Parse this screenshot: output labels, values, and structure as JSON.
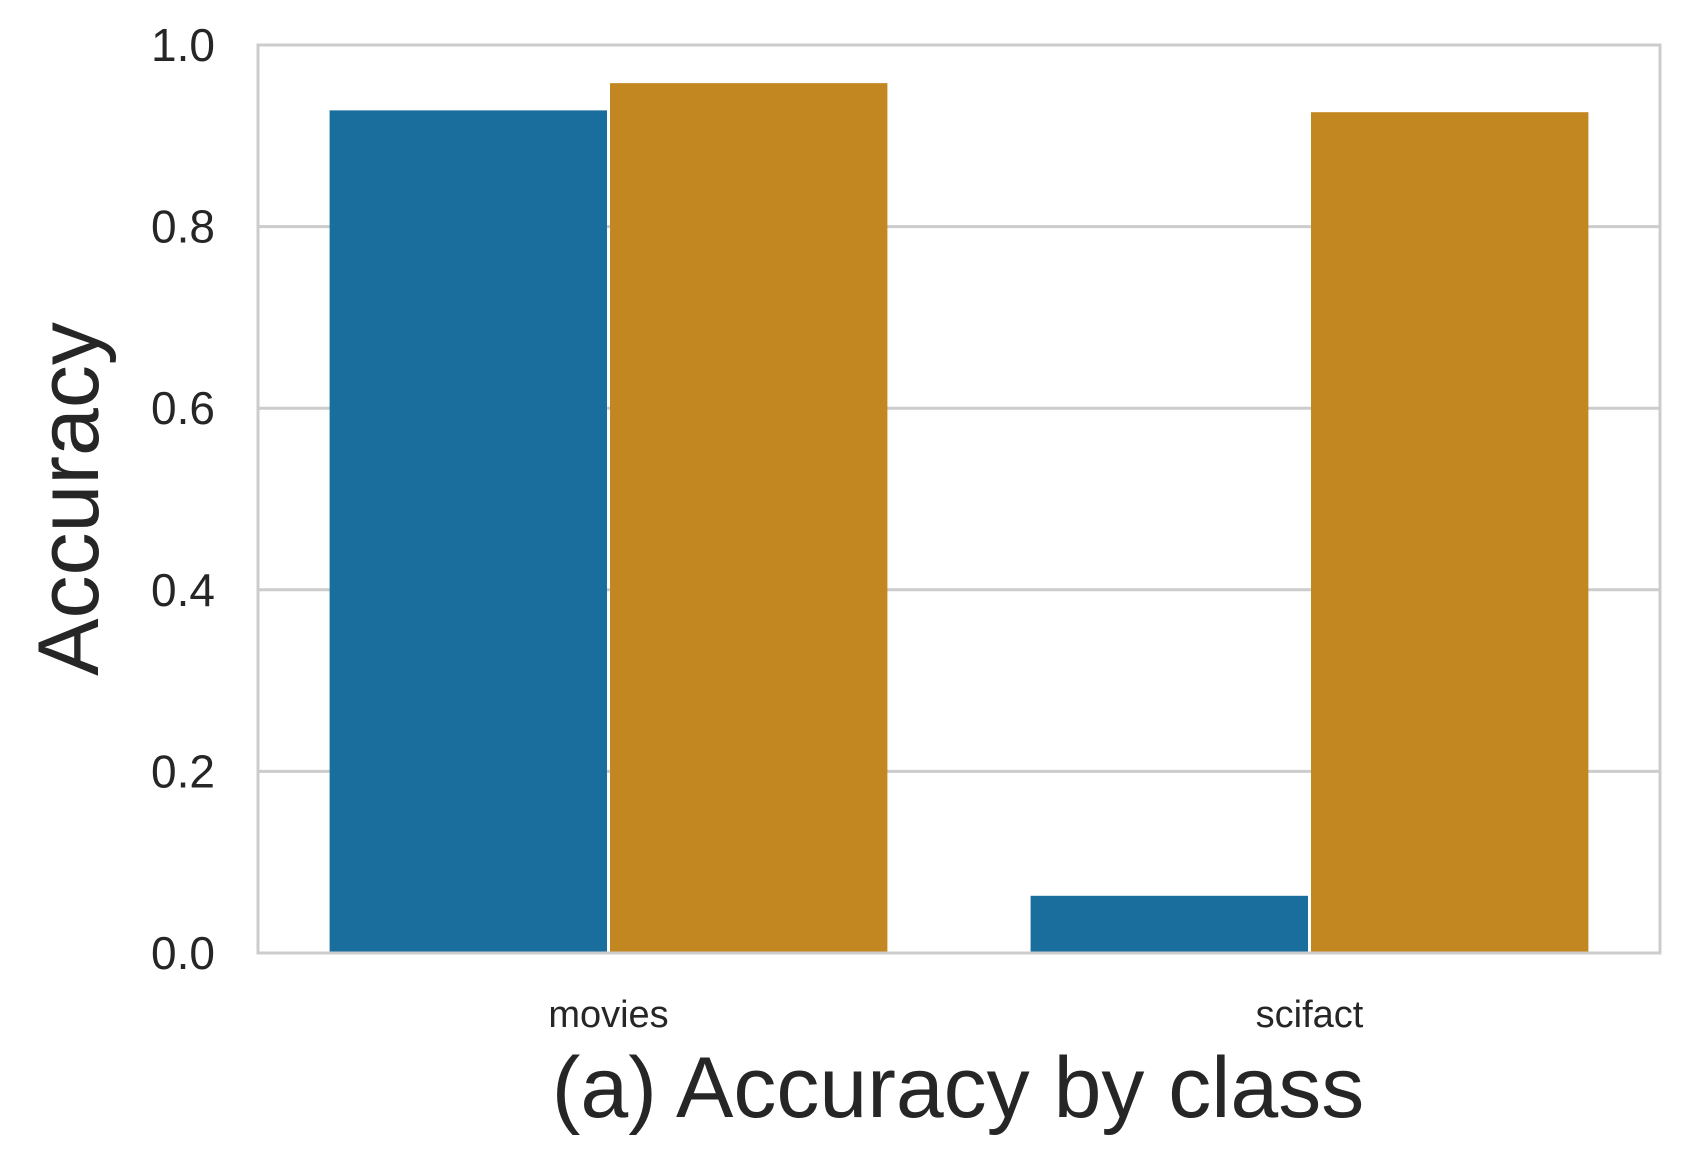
{
  "chart_data": {
    "type": "bar",
    "title": "",
    "xlabel": "(a) Accuracy by class",
    "ylabel": "Accuracy",
    "categories": [
      "movies",
      "scifact"
    ],
    "series": [
      {
        "color": "#1a6e9e",
        "values": [
          0.928,
          0.063
        ]
      },
      {
        "color": "#c28720",
        "values": [
          0.958,
          0.926
        ]
      }
    ],
    "ylim": [
      0,
      1.0
    ],
    "yticks": [
      0.0,
      0.2,
      0.4,
      0.6,
      0.8,
      1.0
    ],
    "ytick_labels": [
      "0.0",
      "0.2",
      "0.4",
      "0.6",
      "0.8",
      "1.0"
    ],
    "grid": true,
    "legend": "none"
  }
}
